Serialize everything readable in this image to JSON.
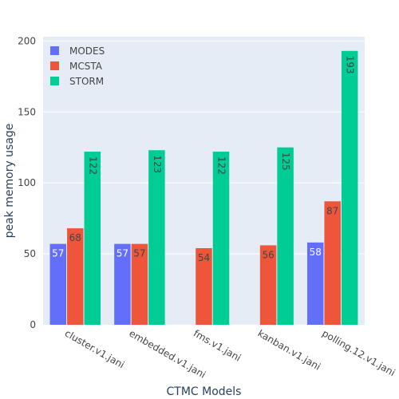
{
  "chart_data": {
    "type": "bar",
    "title": "",
    "xlabel": "CTMC Models",
    "ylabel": "peak memory usage",
    "categories": [
      "cluster.v1.jani",
      "embedded.v1.jani",
      "fms.v1.jani",
      "kanban.v1.jani",
      "polling.12.v1.jani"
    ],
    "series": [
      {
        "name": "MODES",
        "values": [
          57,
          57,
          null,
          null,
          58
        ],
        "color": "#636efa",
        "label_color": "#ffffff"
      },
      {
        "name": "MCSTA",
        "values": [
          68,
          57,
          54,
          56,
          87
        ],
        "color": "#ef553b",
        "label_color": "#444444"
      },
      {
        "name": "STORM",
        "values": [
          122,
          123,
          122,
          125,
          193
        ],
        "color": "#00cc96",
        "label_color": "#444444"
      }
    ],
    "ylim": [
      0,
      203
    ],
    "yticks": [
      0,
      50,
      100,
      150,
      200
    ],
    "grid": true,
    "legend": "top-left",
    "colors": {
      "plot_bg": "#e5ecf6",
      "grid": "#ffffff",
      "text": "#444444",
      "axis_title": "#2a3f5f"
    }
  }
}
